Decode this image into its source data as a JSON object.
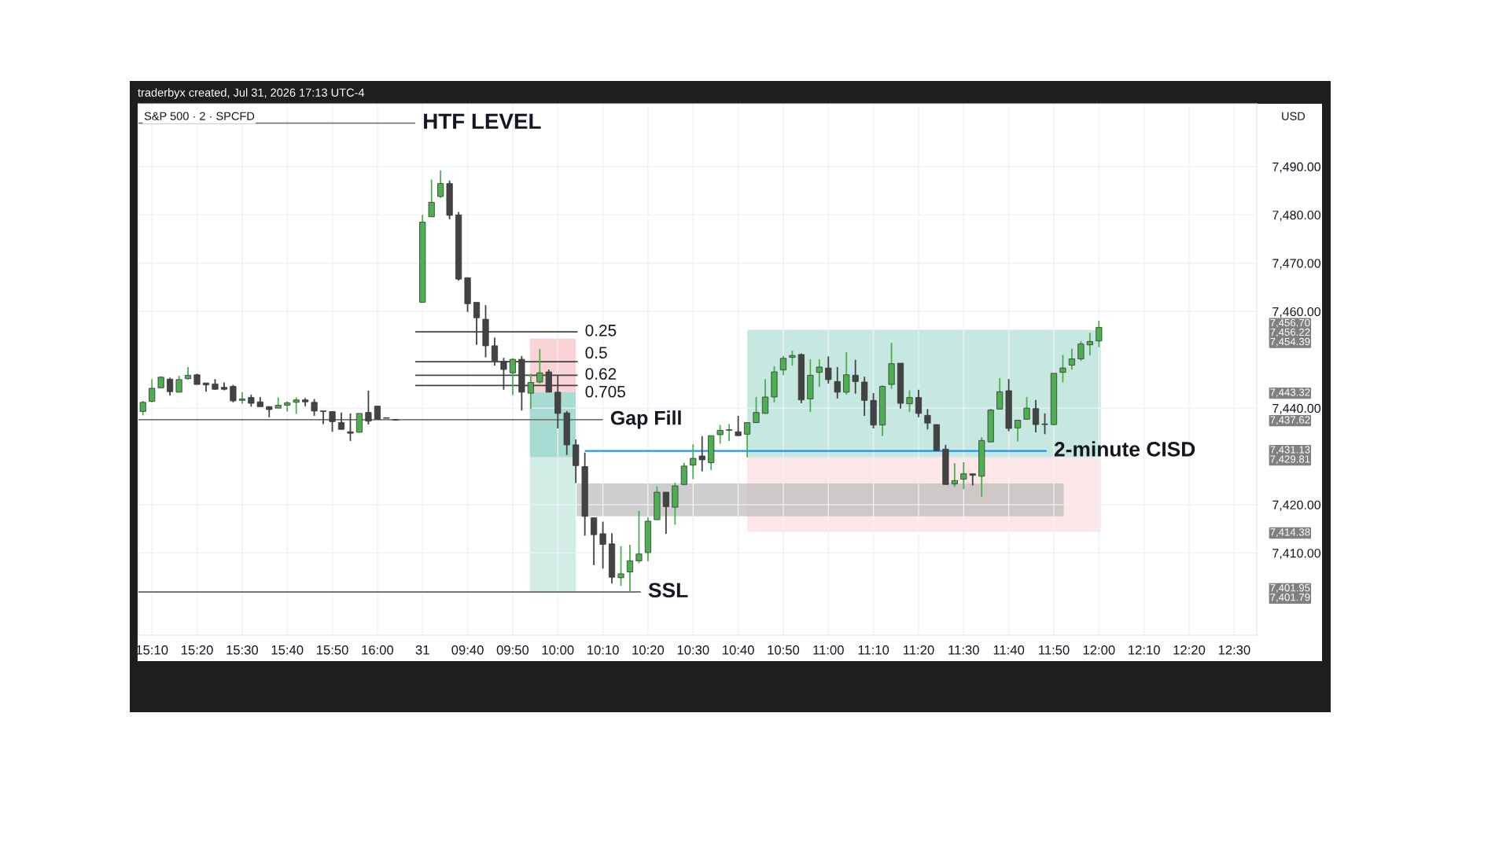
{
  "chart_data": {
    "type": "candlestick",
    "title": "S&P 500 · 2 · SPCFD",
    "categories": [
      null,
      "15:10",
      null,
      null,
      null,
      null,
      "15:20",
      null,
      null,
      null,
      null,
      "15:30",
      null,
      null,
      null,
      null,
      "15:40",
      null,
      null,
      null,
      null,
      "15:50",
      null,
      null,
      null,
      null,
      "16:00",
      null,
      null,
      null,
      null,
      "31",
      null,
      null,
      null,
      null,
      "09:40",
      null,
      null,
      null,
      null,
      "09:50",
      null,
      null,
      null,
      null,
      "10:00",
      null,
      null,
      null,
      null,
      "10:10",
      null,
      null,
      null,
      null,
      "10:20",
      null,
      null,
      null,
      null,
      "10:30",
      null,
      null,
      null,
      null,
      "10:40",
      null,
      null,
      null,
      null,
      "10:50",
      null,
      null,
      null,
      null,
      "11:00",
      null,
      null,
      null,
      null,
      "11:10",
      null,
      null,
      null,
      null,
      "11:20",
      null,
      null,
      null,
      null,
      "11:30",
      null,
      null,
      null,
      null,
      "11:40",
      null,
      null,
      null,
      null,
      "11:50",
      null,
      null,
      null,
      null,
      "12:00",
      null,
      null,
      null,
      null,
      "12:10",
      null,
      null,
      null,
      null,
      "12:20",
      null,
      null,
      null,
      null,
      "12:30",
      null,
      null
    ],
    "ohlc": [
      [
        7439.3,
        7441.5,
        7438.5,
        7441.2
      ],
      [
        7441.4,
        7446.0,
        7441.2,
        7444.1
      ],
      [
        7444.2,
        7446.6,
        7444.2,
        7446.4
      ],
      [
        7446.0,
        7446.3,
        7442.6,
        7443.4
      ],
      [
        7443.3,
        7446.7,
        7443.3,
        7445.9
      ],
      [
        7446.1,
        7448.5,
        7445.9,
        7446.8
      ],
      [
        7446.9,
        7447.1,
        7444.9,
        7444.9
      ],
      [
        7445.2,
        7445.2,
        7443.4,
        7444.8
      ],
      [
        7445.0,
        7446.0,
        7443.8,
        7443.9
      ],
      [
        7444.3,
        7445.3,
        7443.7,
        7443.9
      ],
      [
        7444.5,
        7444.8,
        7441.2,
        7441.5
      ],
      [
        7441.6,
        7443.3,
        7440.9,
        7441.9
      ],
      [
        7442.2,
        7442.8,
        7440.3,
        7441.0
      ],
      [
        7441.3,
        7442.3,
        7440.3,
        7440.3
      ],
      [
        7440.3,
        7440.4,
        7438.1,
        7439.7
      ],
      [
        7440.0,
        7442.2,
        7440.0,
        7440.6
      ],
      [
        7440.6,
        7441.4,
        7439.3,
        7441.1
      ],
      [
        7441.2,
        7442.2,
        7438.8,
        7441.7
      ],
      [
        7441.7,
        7442.1,
        7440.4,
        7441.3
      ],
      [
        7441.2,
        7441.9,
        7438.4,
        7439.4
      ],
      [
        7439.4,
        7439.4,
        7436.7,
        7439.3
      ],
      [
        7439.3,
        7439.3,
        7435.1,
        7437.2
      ],
      [
        7437.0,
        7439.1,
        7435.6,
        7435.6
      ],
      [
        7435.1,
        7438.9,
        7433.2,
        7434.8
      ],
      [
        7435.0,
        7438.9,
        7435.0,
        7438.9
      ],
      [
        7439.1,
        7443.6,
        7436.6,
        7437.3
      ],
      [
        7440.4,
        7440.5,
        7437.7,
        7437.7
      ],
      [
        7437.9,
        7437.9,
        7437.9,
        7437.9
      ],
      [
        7437.5,
        7437.5,
        7437.5,
        7437.5
      ],
      null,
      null,
      [
        7461.9,
        7480.0,
        7461.9,
        7478.5
      ],
      [
        7479.6,
        7487.3,
        7479.6,
        7482.6
      ],
      [
        7483.8,
        7489.2,
        7483.5,
        7486.5
      ],
      [
        7486.5,
        7487.1,
        7479.1,
        7479.9
      ],
      [
        7480.0,
        7480.6,
        7466.4,
        7466.7
      ],
      [
        7467.0,
        7467.0,
        7459.9,
        7461.6
      ],
      [
        7461.9,
        7461.9,
        7453.1,
        7458.7
      ],
      [
        7458.4,
        7461.3,
        7450.5,
        7452.9
      ],
      [
        7452.9,
        7454.6,
        7448.8,
        7449.8
      ],
      [
        7449.7,
        7450.4,
        7443.8,
        7448.0
      ],
      [
        7447.3,
        7450.3,
        7442.7,
        7450.1
      ],
      [
        7450.1,
        7450.8,
        7439.5,
        7443.3
      ],
      [
        7443.1,
        7447.1,
        7439.8,
        7445.3
      ],
      [
        7445.4,
        7452.2,
        7445.1,
        7447.3
      ],
      [
        7447.5,
        7448.0,
        7443.3,
        7443.3
      ],
      [
        7443.3,
        7446.9,
        7435.8,
        7438.9
      ],
      [
        7439.0,
        7439.4,
        7430.3,
        7432.4
      ],
      [
        7432.4,
        7433.5,
        7424.5,
        7428.1
      ],
      [
        7427.9,
        7430.8,
        7413.6,
        7417.6
      ],
      [
        7417.3,
        7417.3,
        7407.5,
        7413.8
      ],
      [
        7414.0,
        7416.5,
        7406.8,
        7411.8
      ],
      [
        7411.9,
        7414.1,
        7403.7,
        7405.0
      ],
      [
        7404.9,
        7411.4,
        7403.2,
        7405.7
      ],
      [
        7406.1,
        7411.7,
        7401.8,
        7408.4
      ],
      [
        7408.4,
        7418.7,
        7407.9,
        7409.8
      ],
      [
        7410.1,
        7417.4,
        7408.3,
        7416.6
      ],
      [
        7416.9,
        7423.8,
        7416.9,
        7422.6
      ],
      [
        7422.6,
        7422.6,
        7414.0,
        7419.6
      ],
      [
        7419.5,
        7424.6,
        7415.9,
        7423.9
      ],
      [
        7424.2,
        7428.7,
        7424.0,
        7428.0
      ],
      [
        7428.2,
        7432.5,
        7425.3,
        7429.6
      ],
      [
        7430.1,
        7434.2,
        7426.9,
        7429.3
      ],
      [
        7428.7,
        7434.3,
        7427.2,
        7434.3
      ],
      [
        7434.5,
        7436.5,
        7432.6,
        7435.4
      ],
      [
        7435.4,
        7436.7,
        7433.2,
        7435.5
      ],
      [
        7435.1,
        7438.4,
        7434.3,
        7434.3
      ],
      [
        7434.6,
        7437.0,
        7429.8,
        7437.0
      ],
      [
        7437.0,
        7442.3,
        7437.0,
        7439.1
      ],
      [
        7438.9,
        7446.0,
        7438.9,
        7442.3
      ],
      [
        7442.3,
        7448.7,
        7441.2,
        7447.5
      ],
      [
        7447.9,
        7450.8,
        7446.8,
        7450.3
      ],
      [
        7450.5,
        7451.9,
        7448.8,
        7450.9
      ],
      [
        7451.1,
        7451.3,
        7441.0,
        7441.7
      ],
      [
        7441.9,
        7450.1,
        7439.2,
        7446.8
      ],
      [
        7447.4,
        7450.1,
        7444.4,
        7448.5
      ],
      [
        7448.3,
        7450.7,
        7445.1,
        7445.9
      ],
      [
        7445.5,
        7448.5,
        7442.0,
        7443.3
      ],
      [
        7443.3,
        7451.6,
        7442.8,
        7446.9
      ],
      [
        7446.8,
        7450.0,
        7443.0,
        7445.5
      ],
      [
        7445.4,
        7446.5,
        7438.4,
        7441.6
      ],
      [
        7441.6,
        7443.1,
        7435.8,
        7436.5
      ],
      [
        7436.5,
        7444.7,
        7434.2,
        7444.5
      ],
      [
        7444.9,
        7453.5,
        7444.0,
        7449.2
      ],
      [
        7449.3,
        7449.3,
        7439.9,
        7441.0
      ],
      [
        7440.9,
        7443.7,
        7439.2,
        7442.2
      ],
      [
        7442.2,
        7443.8,
        7438.1,
        7438.9
      ],
      [
        7438.5,
        7439.8,
        7435.6,
        7436.9
      ],
      [
        7436.6,
        7436.6,
        7431.2,
        7431.2
      ],
      [
        7431.5,
        7432.4,
        7424.2,
        7424.2
      ],
      [
        7424.3,
        7428.6,
        7423.7,
        7425.0
      ],
      [
        7425.3,
        7428.8,
        7423.2,
        7426.4
      ],
      [
        7426.4,
        7426.4,
        7424.0,
        7426.1
      ],
      [
        7425.9,
        7434.0,
        7421.6,
        7433.3
      ],
      [
        7433.0,
        7439.9,
        7433.0,
        7439.6
      ],
      [
        7439.8,
        7446.2,
        7439.8,
        7443.4
      ],
      [
        7443.6,
        7446.0,
        7435.2,
        7435.8
      ],
      [
        7435.9,
        7437.5,
        7433.1,
        7437.5
      ],
      [
        7437.7,
        7442.3,
        7437.6,
        7440.0
      ],
      [
        7439.9,
        7441.7,
        7435.0,
        7436.6
      ],
      [
        7436.7,
        7438.9,
        7434.6,
        7436.6
      ],
      [
        7436.6,
        7447.2,
        7436.4,
        7447.2
      ],
      [
        7447.4,
        7451.0,
        7445.3,
        7448.3
      ],
      [
        7448.9,
        7452.3,
        7448.0,
        7450.2
      ],
      [
        7450.2,
        7453.9,
        7449.8,
        7453.3
      ],
      [
        7453.1,
        7455.6,
        7450.9,
        7453.8
      ],
      [
        7453.9,
        7458.1,
        7452.6,
        7456.7
      ],
      null,
      null,
      null,
      null,
      null,
      null,
      null,
      null,
      null,
      null,
      null,
      null,
      null,
      null,
      null,
      null,
      null
    ],
    "colors": [
      "#4caf50",
      "#4caf50",
      "#4caf50",
      "#434343",
      "#4caf50",
      "#4caf50",
      "#434343",
      "#434343",
      "#434343",
      "#434343",
      "#434343",
      "#4caf50",
      "#434343",
      "#434343",
      "#434343",
      "#4caf50",
      "#4caf50",
      "#4caf50",
      "#434343",
      "#434343",
      "#434343",
      "#434343",
      "#434343",
      "#434343",
      "#4caf50",
      "#434343",
      "#434343",
      "#434343",
      "#434343",
      null,
      null,
      "#4caf50",
      "#4caf50",
      "#4caf50",
      "#434343",
      "#434343",
      "#434343",
      "#434343",
      "#434343",
      "#434343",
      "#434343",
      "#4caf50",
      "#434343",
      "#4caf50",
      "#4caf50",
      "#434343",
      "#434343",
      "#434343",
      "#434343",
      "#434343",
      "#434343",
      "#434343",
      "#434343",
      "#4caf50",
      "#4caf50",
      "#4caf50",
      "#4caf50",
      "#4caf50",
      "#434343",
      "#4caf50",
      "#4caf50",
      "#4caf50",
      "#434343",
      "#4caf50",
      "#4caf50",
      "#4caf50",
      "#434343",
      "#4caf50",
      "#4caf50",
      "#4caf50",
      "#4caf50",
      "#4caf50",
      "#4caf50",
      "#434343",
      "#4caf50",
      "#4caf50",
      "#434343",
      "#434343",
      "#4caf50",
      "#434343",
      "#434343",
      "#434343",
      "#4caf50",
      "#4caf50",
      "#434343",
      "#4caf50",
      "#434343",
      "#434343",
      "#434343",
      "#434343",
      "#4caf50",
      "#4caf50",
      "#434343",
      "#4caf50",
      "#4caf50",
      "#4caf50",
      "#434343",
      "#4caf50",
      "#4caf50",
      "#434343",
      "#434343",
      "#4caf50",
      "#4caf50",
      "#4caf50",
      "#4caf50",
      "#4caf50",
      "#4caf50",
      null,
      null,
      null,
      null,
      null,
      null,
      null,
      null,
      null,
      null,
      null,
      null,
      null,
      null,
      null,
      null,
      null
    ],
    "ylim": [
      7393,
      7503
    ],
    "yticks": [
      {
        "value": 7410,
        "label": "7,410.00"
      },
      {
        "value": 7420,
        "label": "7,420.00"
      },
      {
        "value": 7440,
        "label": "7,440.00"
      },
      {
        "value": 7460,
        "label": "7,460.00"
      },
      {
        "value": 7470,
        "label": "7,470.00"
      },
      {
        "value": 7480,
        "label": "7,480.00"
      },
      {
        "value": 7490,
        "label": "7,490.00"
      }
    ],
    "y2lim": [
      7393,
      7503
    ],
    "y2ticks": [
      {
        "value": 7456.7,
        "label": "7,456.70"
      },
      {
        "value": 7456.22,
        "label": "7,456.22"
      },
      {
        "value": 7454.39,
        "label": "7,454.39"
      },
      {
        "value": 7443.32,
        "label": "7,443.32"
      },
      {
        "value": 7437.62,
        "label": "7,437.62"
      },
      {
        "value": 7431.13,
        "label": "7,431.13"
      },
      {
        "value": 7429.81,
        "label": "7,429.81"
      },
      {
        "value": 7414.38,
        "label": "7,414.38"
      },
      {
        "value": 7401.95,
        "label": "7,401.95"
      },
      {
        "value": 7401.79,
        "label": "7,401.79"
      }
    ],
    "grid": true,
    "ref_lines": [
      {
        "axis": "y",
        "value": 7499.0,
        "label": "HTF LEVEL",
        "color": "#787878"
      },
      {
        "axis": "y",
        "value": 7455.8,
        "color": "#434343"
      },
      {
        "axis": "y",
        "value": 7449.6,
        "color": "#434343"
      },
      {
        "axis": "y",
        "value": 7446.8,
        "color": "#434343"
      },
      {
        "axis": "y",
        "value": 7444.7,
        "color": "#434343"
      },
      {
        "axis": "y",
        "value": 7437.62,
        "label": "Gap Fill",
        "color": "#787878"
      },
      {
        "axis": "y",
        "value": 7431.13,
        "label": "2-minute CISD",
        "color": "#2196f3"
      },
      {
        "axis": "y",
        "value": 7401.95,
        "label": "SSL",
        "color": "#787878"
      }
    ],
    "bands": [
      {
        "axis": "y",
        "from": 7443.32,
        "to": 7454.39,
        "color": "#f9d3d6"
      },
      {
        "axis": "y",
        "from": 7401.79,
        "to": 7429.81,
        "color": "#d2ece6"
      },
      {
        "axis": "y",
        "from": 7429.81,
        "to": 7443.32,
        "color": "#a8dcd3"
      },
      {
        "axis": "y",
        "from": 7429.81,
        "to": 7456.22,
        "color": "#c6e8e1"
      },
      {
        "axis": "y",
        "from": 7414.38,
        "to": 7429.81,
        "color": "#fde6e8"
      },
      {
        "axis": "y",
        "from": 7417.6,
        "to": 7424.4,
        "color": "#bdbdbd"
      }
    ],
    "annotations": [
      "traderbyx created, Jul 31, 2026 17:13 UTC-4",
      "USD",
      "0.25",
      "0.5",
      "0.62",
      "0.705"
    ]
  }
}
